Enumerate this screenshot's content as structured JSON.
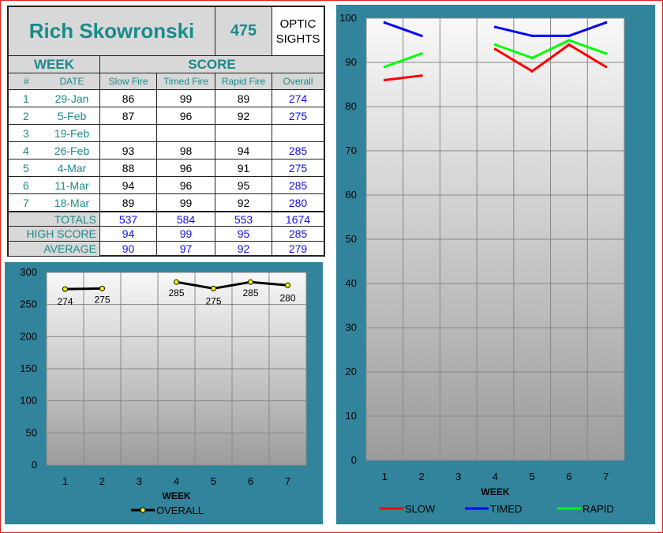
{
  "header": {
    "name": "Rich Skowronski",
    "number": "475",
    "sights_line1": "OPTIC",
    "sights_line2": "SIGHTS"
  },
  "table": {
    "week_header": "WEEK",
    "score_header": "SCORE",
    "columns": [
      "#",
      "DATE",
      "Slow Fire",
      "Timed Fire",
      "Rapid Fire",
      "Overall"
    ],
    "rows": [
      {
        "num": "1",
        "date": "29-Jan",
        "slow": "86",
        "timed": "99",
        "rapid": "89",
        "overall": "274"
      },
      {
        "num": "2",
        "date": "5-Feb",
        "slow": "87",
        "timed": "96",
        "rapid": "92",
        "overall": "275"
      },
      {
        "num": "3",
        "date": "19-Feb",
        "slow": "",
        "timed": "",
        "rapid": "",
        "overall": ""
      },
      {
        "num": "4",
        "date": "26-Feb",
        "slow": "93",
        "timed": "98",
        "rapid": "94",
        "overall": "285"
      },
      {
        "num": "5",
        "date": "4-Mar",
        "slow": "88",
        "timed": "96",
        "rapid": "91",
        "overall": "275"
      },
      {
        "num": "6",
        "date": "11-Mar",
        "slow": "94",
        "timed": "96",
        "rapid": "95",
        "overall": "285"
      },
      {
        "num": "7",
        "date": "18-Mar",
        "slow": "89",
        "timed": "99",
        "rapid": "92",
        "overall": "280"
      }
    ],
    "summary": [
      {
        "label": "TOTALS",
        "slow": "537",
        "timed": "584",
        "rapid": "553",
        "overall": "1674"
      },
      {
        "label": "HIGH SCORE",
        "slow": "94",
        "timed": "99",
        "rapid": "95",
        "overall": "285"
      },
      {
        "label": "AVERAGE",
        "slow": "90",
        "timed": "97",
        "rapid": "92",
        "overall": "279"
      }
    ]
  },
  "chart_data": [
    {
      "type": "line",
      "x": [
        1,
        2,
        3,
        4,
        5,
        6,
        7
      ],
      "xlabel": "WEEK",
      "ylim": [
        0,
        300
      ],
      "yticks": [
        0,
        50,
        100,
        150,
        200,
        250,
        300
      ],
      "grid": true,
      "legend": "bottom",
      "series": [
        {
          "name": "OVERALL",
          "color": "#000000",
          "marker_color": "#ffff00",
          "values": [
            274,
            275,
            null,
            285,
            275,
            285,
            280
          ],
          "labels": [
            "274",
            "275",
            "",
            "285",
            "275",
            "285",
            "280"
          ]
        }
      ]
    },
    {
      "type": "line",
      "x": [
        1,
        2,
        3,
        4,
        5,
        6,
        7
      ],
      "xlabel": "WEEK",
      "ylim": [
        0,
        100
      ],
      "yticks": [
        0,
        10,
        20,
        30,
        40,
        50,
        60,
        70,
        80,
        90,
        100
      ],
      "grid": true,
      "legend": "bottom",
      "series": [
        {
          "name": "SLOW",
          "color": "#ff0000",
          "values": [
            86,
            87,
            null,
            93,
            88,
            94,
            89
          ]
        },
        {
          "name": "TIMED",
          "color": "#0000ff",
          "values": [
            99,
            96,
            null,
            98,
            96,
            96,
            99
          ]
        },
        {
          "name": "RAPID",
          "color": "#00ff00",
          "values": [
            89,
            92,
            null,
            94,
            91,
            95,
            92
          ]
        }
      ]
    }
  ]
}
